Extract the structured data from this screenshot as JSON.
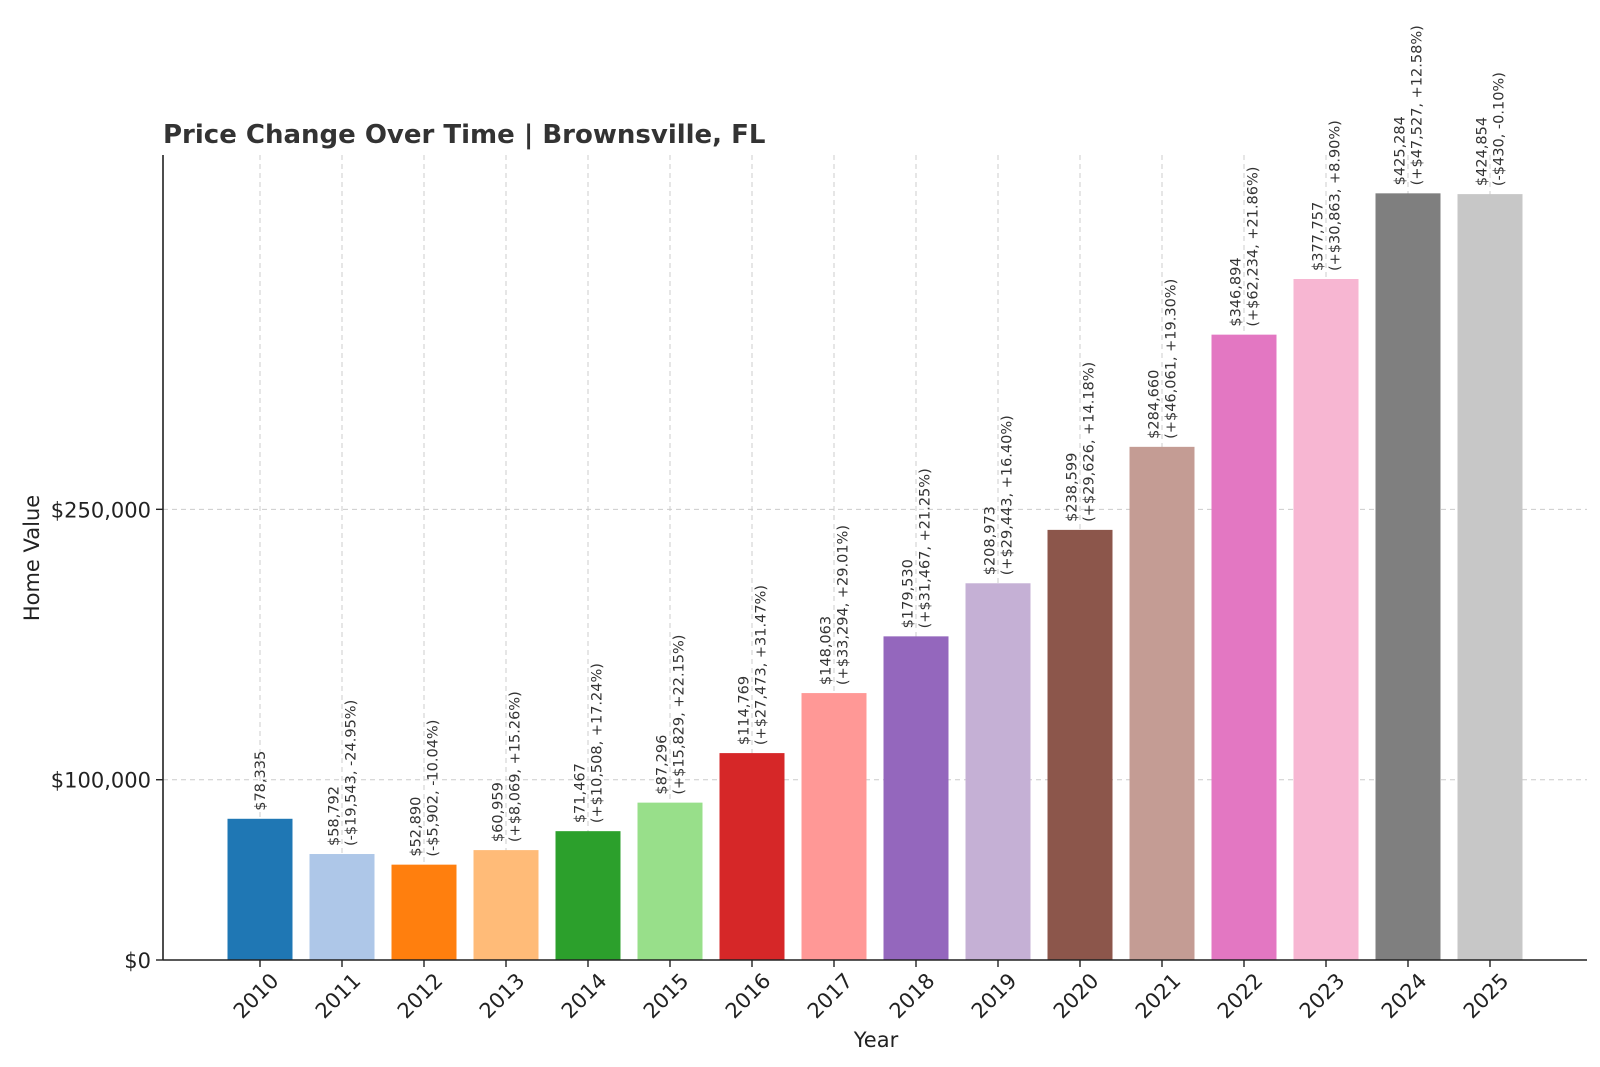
{
  "chart_data": {
    "type": "bar",
    "title": "Price Change Over Time | Brownsville, FL",
    "xlabel": "Year",
    "ylabel": "Home Value",
    "categories": [
      "2010",
      "2011",
      "2012",
      "2013",
      "2014",
      "2015",
      "2016",
      "2017",
      "2018",
      "2019",
      "2020",
      "2021",
      "2022",
      "2023",
      "2024",
      "2025"
    ],
    "values": [
      78335,
      58792,
      52890,
      60959,
      71467,
      87296,
      114769,
      148063,
      179530,
      208973,
      238599,
      284660,
      346894,
      377757,
      425284,
      424854
    ],
    "bar_labels": [
      "$78,335",
      "$58,792\n(-$19,543, -24.95%)",
      "$52,890\n(-$5,902, -10.04%)",
      "$60,959\n(+$8,069, +15.26%)",
      "$71,467\n(+$10,508, +17.24%)",
      "$87,296\n(+$15,829, +22.15%)",
      "$114,769\n(+$27,473, +31.47%)",
      "$148,063\n(+$33,294, +29.01%)",
      "$179,530\n(+$31,467, +21.25%)",
      "$208,973\n(+$29,443, +16.40%)",
      "$238,599\n(+$29,626, +14.18%)",
      "$284,660\n(+$46,061, +19.30%)",
      "$346,894\n(+$62,234, +21.86%)",
      "$377,757\n(+$30,863, +8.90%)",
      "$425,284\n(+$47,527, +12.58%)",
      "$424,854\n(-$430, -0.10%)"
    ],
    "colors": [
      "#1f77b4",
      "#aec7e8",
      "#ff7f0e",
      "#ffbb78",
      "#2ca02c",
      "#98df8a",
      "#d62728",
      "#ff9896",
      "#9467bd",
      "#c5b0d5",
      "#8c564b",
      "#c49c94",
      "#e377c2",
      "#f7b6d2",
      "#7f7f7f",
      "#c7c7c7"
    ],
    "y_ticks": [
      0,
      100000,
      250000
    ],
    "y_tick_labels": [
      "$0",
      "$100,000",
      "$250,000"
    ],
    "ylim": [
      0,
      446548
    ],
    "grid": true,
    "legend": "none"
  }
}
